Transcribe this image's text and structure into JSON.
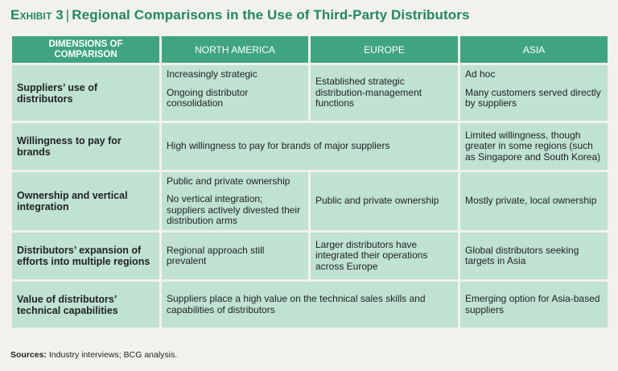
{
  "title": {
    "exhibit": "Exhibit 3",
    "separator": "|",
    "text": "Regional Comparisons in the Use of Third-Party Distributors"
  },
  "table": {
    "headers": [
      "DIMENSIONS OF COMPARISON",
      "NORTH AMERICA",
      "EUROPE",
      "ASIA"
    ],
    "rows": [
      {
        "label": "Suppliers’ use of distributors",
        "north_america": [
          "Increasingly strategic",
          "Ongoing distributor consolidation"
        ],
        "europe": [
          "Established strategic distribution-management functions"
        ],
        "asia": [
          "Ad hoc",
          "Many customers served directly by suppliers"
        ]
      },
      {
        "label": "Willingness to pay for brands",
        "na_europe": "High willingness to pay for brands of major suppliers",
        "asia": [
          "Limited willingness, though greater in some regions (such as Singapore and South Korea)"
        ]
      },
      {
        "label": "Ownership and vertical integration",
        "north_america": [
          "Public and private ownership",
          "No vertical integration; suppliers actively divested their distribution arms"
        ],
        "europe": [
          "Public and private ownership"
        ],
        "asia": [
          "Mostly private, local ownership"
        ]
      },
      {
        "label": "Distributors’ expansion of efforts into multiple regions",
        "north_america": [
          "Regional approach still prevalent"
        ],
        "europe": [
          "Larger distributors have integrated their operations across Europe"
        ],
        "asia": [
          "Global distributors seeking targets in Asia"
        ]
      },
      {
        "label": "Value of distributors’ technical capabilities",
        "na_europe": "Suppliers place a high value on the technical sales skills and capabilities of distributors",
        "asia": [
          "Emerging option for Asia-based suppliers"
        ]
      }
    ]
  },
  "source": {
    "label": "Sources:",
    "text": "Industry interviews; BCG analysis."
  },
  "colors": {
    "title": "#1e8a5e",
    "header_bg": "#3fa581",
    "cell_bg": "#bfe2d3",
    "page_bg": "#f3f1ed"
  }
}
